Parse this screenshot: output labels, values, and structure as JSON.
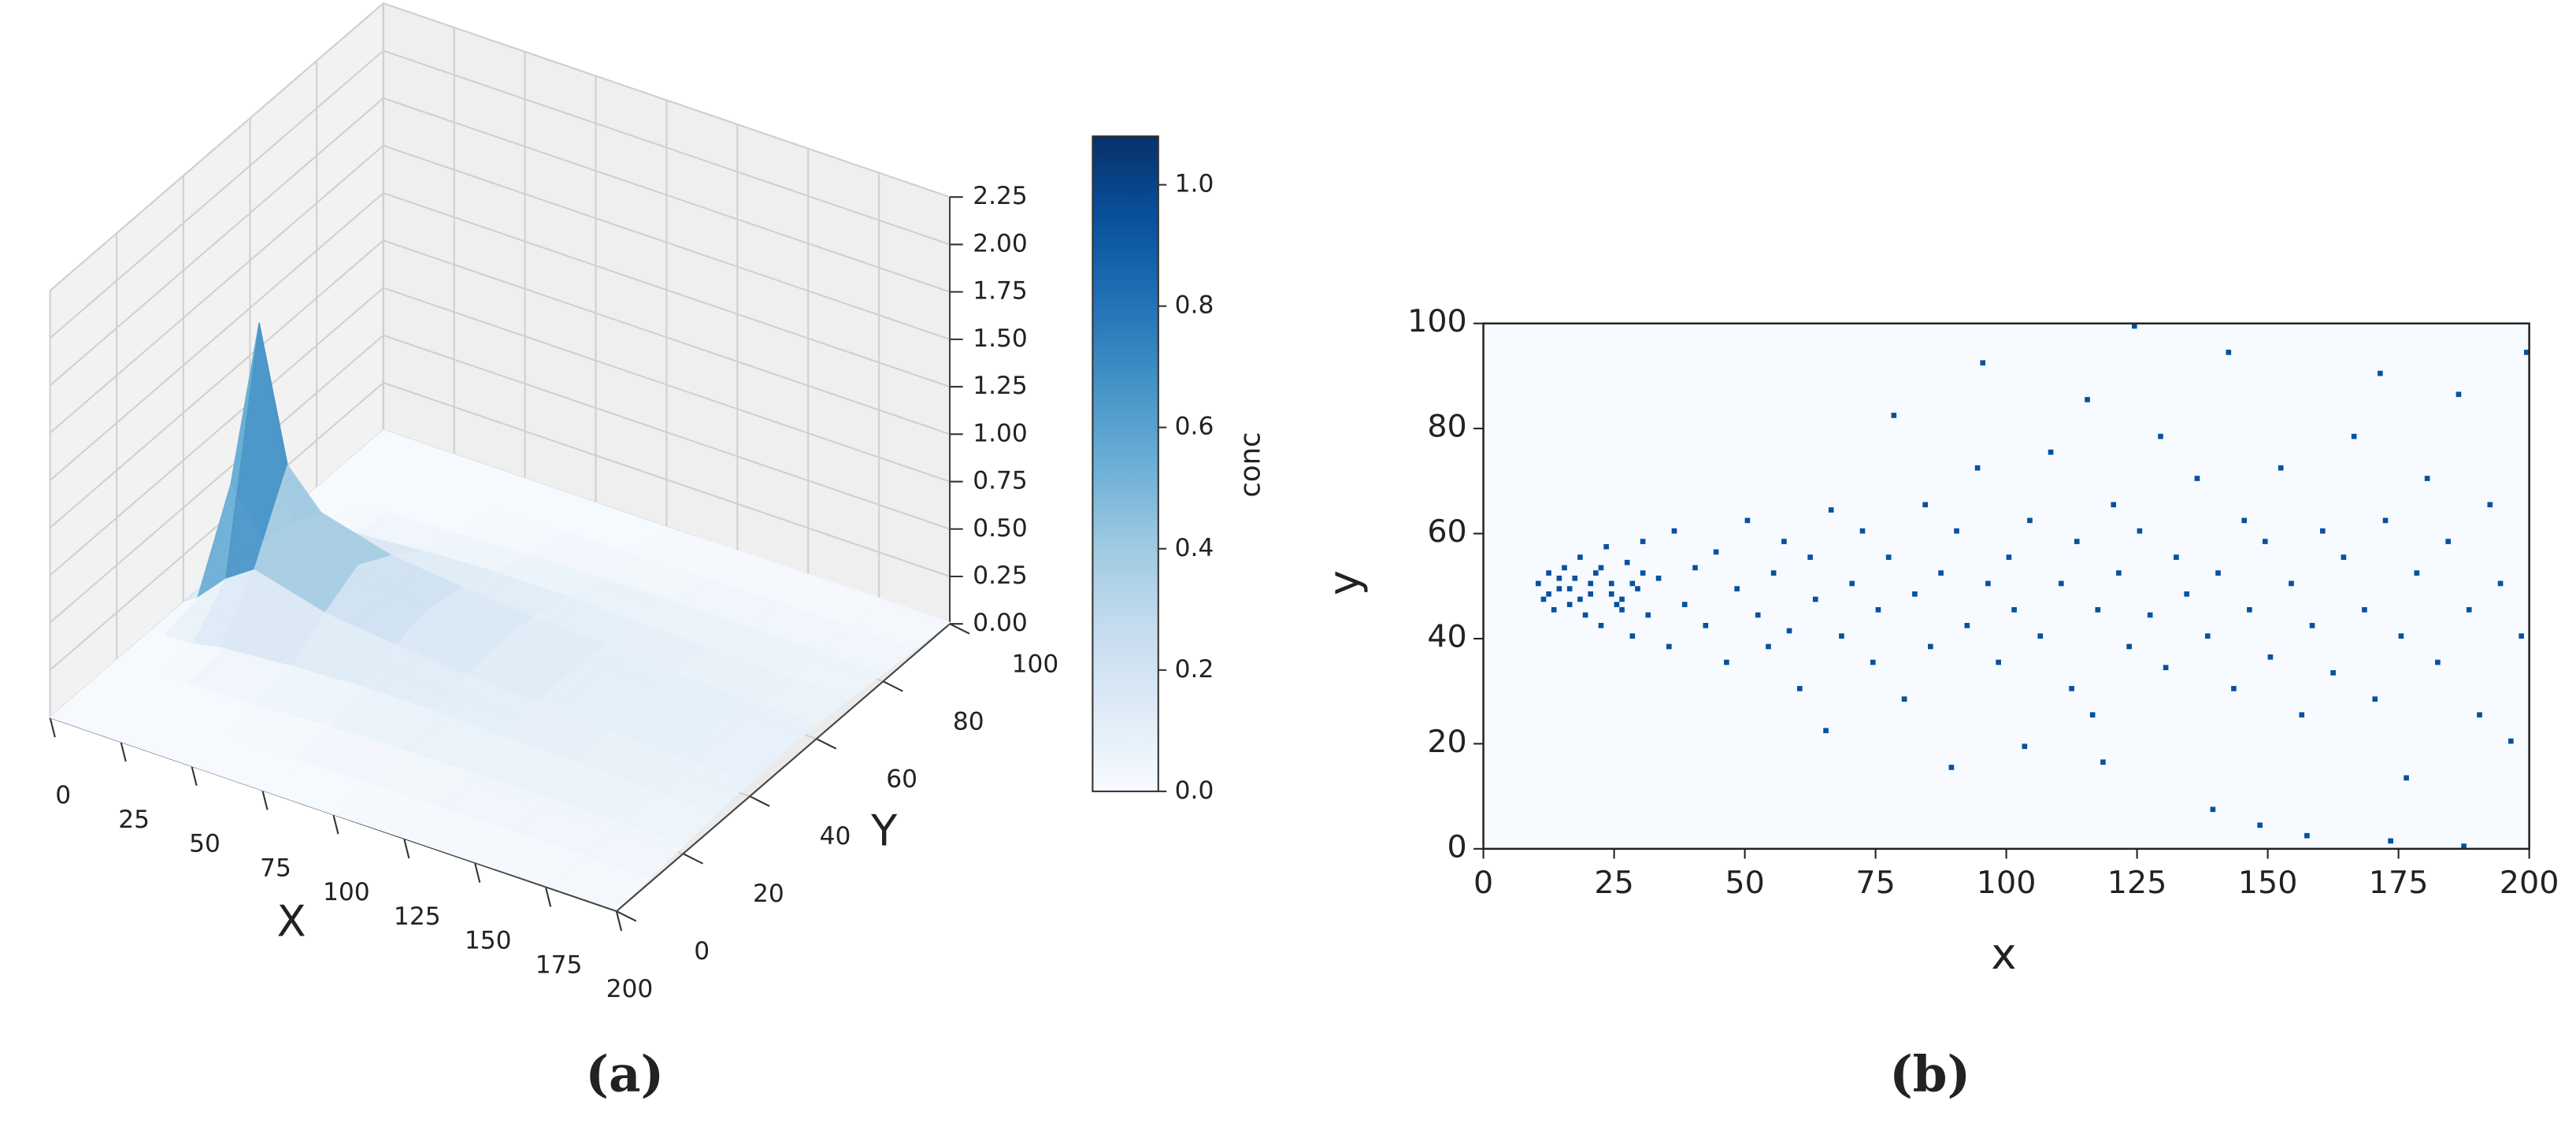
{
  "chart_data": [
    {
      "type": "surface3d",
      "caption": "(a)",
      "xlabel": "X",
      "ylabel": "Y",
      "x": [
        0,
        5,
        15,
        25,
        50,
        75,
        100,
        125,
        150,
        175,
        200
      ],
      "y": [
        0,
        10,
        20,
        30,
        40,
        50,
        60,
        70,
        80,
        90,
        100
      ],
      "z": [
        [
          0,
          0,
          0,
          0,
          0,
          0,
          0,
          0,
          0,
          0,
          0
        ],
        [
          0,
          0,
          0,
          0,
          0.05,
          0.5,
          0.05,
          0,
          0,
          0,
          0
        ],
        [
          0,
          0,
          0,
          0.01,
          0.2,
          1.4,
          0.2,
          0.01,
          0,
          0,
          0
        ],
        [
          0,
          0,
          0,
          0.04,
          0.3,
          0.7,
          0.3,
          0.04,
          0,
          0,
          0
        ],
        [
          0,
          0,
          0.01,
          0.07,
          0.2,
          0.3,
          0.2,
          0.07,
          0.01,
          0,
          0
        ],
        [
          0,
          0.005,
          0.03,
          0.09,
          0.16,
          0.2,
          0.16,
          0.09,
          0.03,
          0.005,
          0
        ],
        [
          0,
          0.01,
          0.04,
          0.09,
          0.13,
          0.15,
          0.13,
          0.09,
          0.04,
          0.01,
          0
        ],
        [
          0.003,
          0.015,
          0.045,
          0.08,
          0.11,
          0.12,
          0.11,
          0.08,
          0.045,
          0.015,
          0.003
        ],
        [
          0.005,
          0.02,
          0.045,
          0.075,
          0.09,
          0.1,
          0.09,
          0.075,
          0.045,
          0.02,
          0.005
        ],
        [
          0.007,
          0.02,
          0.045,
          0.068,
          0.08,
          0.09,
          0.08,
          0.068,
          0.045,
          0.02,
          0.007
        ],
        [
          0.008,
          0.022,
          0.042,
          0.06,
          0.072,
          0.08,
          0.072,
          0.06,
          0.042,
          0.022,
          0.008
        ]
      ],
      "xlim": [
        0,
        200
      ],
      "xticks": [
        0,
        25,
        50,
        75,
        100,
        125,
        150,
        175,
        200
      ],
      "ylim": [
        0,
        100
      ],
      "yticks": [
        0,
        20,
        40,
        60,
        80,
        100
      ],
      "zlim": [
        0,
        2.25
      ],
      "zticks": [
        {
          "value": 0,
          "label": "0.00"
        },
        {
          "value": 0.25,
          "label": "0.25"
        },
        {
          "value": 0.5,
          "label": "0.50"
        },
        {
          "value": 0.75,
          "label": "0.75"
        },
        {
          "value": 1.0,
          "label": "1.00"
        },
        {
          "value": 1.25,
          "label": "1.25"
        },
        {
          "value": 1.5,
          "label": "1.50"
        },
        {
          "value": 1.75,
          "label": "1.75"
        },
        {
          "value": 2.0,
          "label": "2.00"
        },
        {
          "value": 2.25,
          "label": "2.25"
        }
      ],
      "colormap": [
        "#f7fbff",
        "#deebf7",
        "#c6dbef",
        "#9ecae1",
        "#6baed6",
        "#4292c6",
        "#2171b5",
        "#08519c",
        "#08306b"
      ],
      "colorbar": {
        "label": "conc",
        "lim": [
          0,
          1.08
        ],
        "ticks": [
          {
            "value": 0,
            "label": "0.0"
          },
          {
            "value": 0.2,
            "label": "0.2"
          },
          {
            "value": 0.4,
            "label": "0.4"
          },
          {
            "value": 0.6,
            "label": "0.6"
          },
          {
            "value": 0.8,
            "label": "0.8"
          },
          {
            "value": 1.0,
            "label": "1.0"
          }
        ]
      },
      "grid": true
    },
    {
      "type": "scatter",
      "caption": "(b)",
      "xlabel": "x",
      "ylabel": "y",
      "color": "#08519c",
      "background": "#f7fbff",
      "x": [
        10,
        11,
        12,
        13,
        14,
        15,
        16,
        17,
        18,
        19,
        20,
        21,
        22,
        23,
        24,
        25,
        26,
        27,
        28,
        29,
        30,
        31,
        33,
        35,
        36,
        38,
        40,
        42,
        44,
        46,
        48,
        50,
        52,
        54,
        55,
        57,
        58,
        60,
        62,
        63,
        65,
        66,
        68,
        70,
        72,
        74,
        75,
        77,
        78,
        80,
        82,
        84,
        85,
        87,
        89,
        90,
        92,
        94,
        95,
        96,
        98,
        100,
        101,
        103,
        104,
        106,
        108,
        110,
        112,
        113,
        115,
        116,
        117,
        118,
        120,
        121,
        123,
        124,
        125,
        127,
        129,
        130,
        132,
        134,
        136,
        138,
        139,
        140,
        142,
        143,
        145,
        146,
        148,
        149,
        150,
        152,
        154,
        156,
        157,
        158,
        160,
        162,
        164,
        166,
        168,
        170,
        171,
        172,
        173,
        175,
        176,
        178,
        180,
        182,
        184,
        186,
        187,
        188,
        190,
        192,
        194,
        196,
        198,
        199,
        12,
        14,
        16,
        18,
        20,
        22,
        24,
        26,
        28,
        30
      ],
      "values": [
        50,
        47,
        52,
        45,
        49,
        53,
        46,
        51,
        55,
        44,
        48,
        52,
        42,
        57,
        50,
        46,
        47,
        54,
        40,
        49,
        58,
        44,
        51,
        38,
        60,
        46,
        53,
        42,
        56,
        35,
        49,
        62,
        44,
        38,
        52,
        58,
        41,
        30,
        55,
        47,
        22,
        64,
        40,
        50,
        60,
        35,
        45,
        55,
        82,
        28,
        48,
        65,
        38,
        52,
        15,
        60,
        42,
        72,
        92,
        50,
        35,
        55,
        45,
        19,
        62,
        40,
        75,
        50,
        30,
        58,
        85,
        25,
        45,
        16,
        65,
        52,
        38,
        99,
        60,
        44,
        78,
        34,
        55,
        48,
        70,
        40,
        7,
        52,
        94,
        30,
        62,
        45,
        4,
        58,
        36,
        72,
        50,
        25,
        2,
        42,
        60,
        33,
        55,
        78,
        45,
        28,
        90,
        62,
        1,
        40,
        13,
        52,
        70,
        35,
        58,
        86,
        0,
        45,
        25,
        65,
        50,
        20,
        40,
        94,
        48,
        51,
        49,
        47,
        50,
        53,
        48,
        45,
        50,
        52
      ],
      "xlim": [
        0,
        200
      ],
      "xticks": [
        0,
        25,
        50,
        75,
        100,
        125,
        150,
        175,
        200
      ],
      "ylim": [
        0,
        100
      ],
      "yticks": [
        0,
        20,
        40,
        60,
        80,
        100
      ]
    }
  ]
}
